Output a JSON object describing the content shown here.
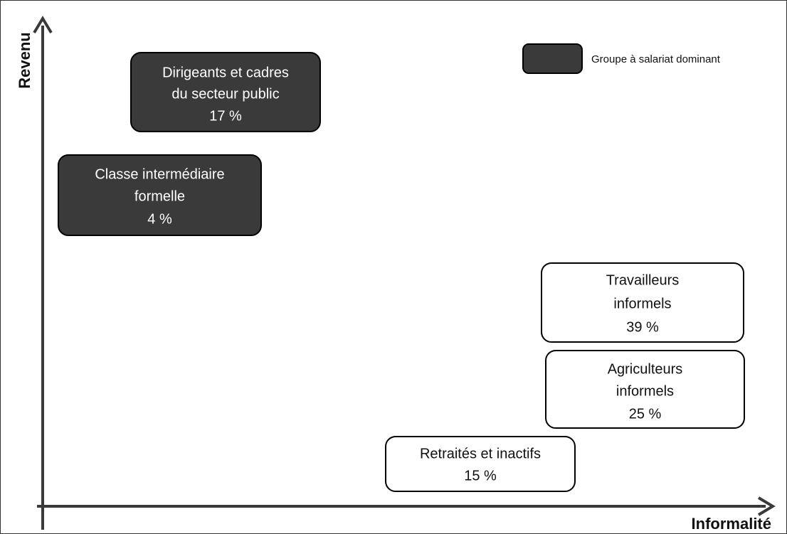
{
  "axes": {
    "y_label": "Revenu",
    "x_label": "Informalité"
  },
  "legend": {
    "label": "Groupe à salariat dominant"
  },
  "nodes": [
    {
      "lines": [
        "Dirigeants et cadres",
        "du secteur public"
      ],
      "share": "17 %",
      "salaried": true
    },
    {
      "lines": [
        "Classe intermédiaire",
        "formelle"
      ],
      "share": "4 %",
      "salaried": true
    },
    {
      "lines": [
        "Travailleurs",
        "informels"
      ],
      "share": "39 %",
      "salaried": false
    },
    {
      "lines": [
        "Agriculteurs",
        "informels"
      ],
      "share": "25 %",
      "salaried": false
    },
    {
      "lines": [
        "Retraités et inactifs"
      ],
      "share": "15 %",
      "salaried": false
    }
  ]
}
